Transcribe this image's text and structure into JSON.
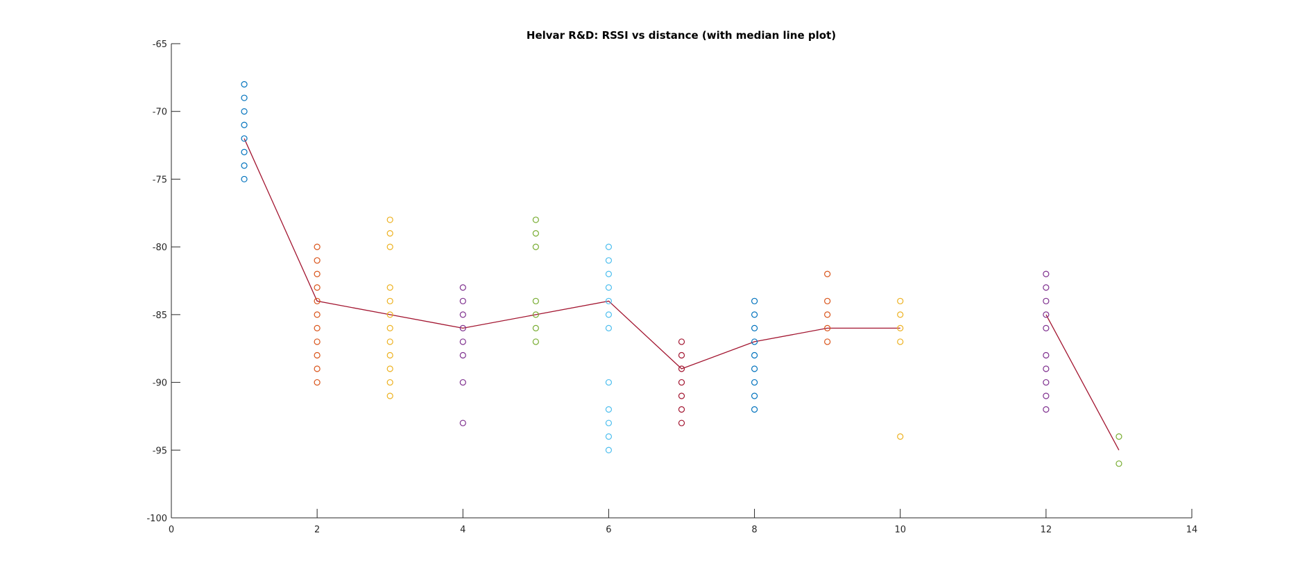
{
  "chart_data": {
    "type": "scatter",
    "title": "Helvar R&D: RSSI vs distance (with median line plot)",
    "xlabel": "",
    "ylabel": "",
    "xlim": [
      0,
      14
    ],
    "ylim": [
      -100,
      -65
    ],
    "xticks": [
      0,
      2,
      4,
      6,
      8,
      10,
      12,
      14
    ],
    "yticks": [
      -65,
      -70,
      -75,
      -80,
      -85,
      -90,
      -95,
      -100
    ],
    "grid": false,
    "point_colors": [
      "#0072BD",
      "#D95319",
      "#EDB120",
      "#7E2F8E",
      "#77AC30",
      "#4DBEEE",
      "#A2142F"
    ],
    "series": [
      {
        "x": 1,
        "values": [
          -68,
          -69,
          -70,
          -71,
          -72,
          -73,
          -74,
          -75
        ]
      },
      {
        "x": 2,
        "values": [
          -80,
          -81,
          -82,
          -83,
          -84,
          -85,
          -86,
          -87,
          -88,
          -89,
          -90
        ]
      },
      {
        "x": 3,
        "values": [
          -78,
          -79,
          -80,
          -83,
          -84,
          -85,
          -86,
          -87,
          -88,
          -89,
          -90,
          -91
        ]
      },
      {
        "x": 4,
        "values": [
          -83,
          -84,
          -85,
          -86,
          -87,
          -88,
          -90,
          -93
        ]
      },
      {
        "x": 5,
        "values": [
          -78,
          -79,
          -80,
          -84,
          -85,
          -86,
          -87
        ]
      },
      {
        "x": 6,
        "values": [
          -80,
          -81,
          -82,
          -83,
          -84,
          -85,
          -86,
          -90,
          -92,
          -93,
          -94,
          -95
        ]
      },
      {
        "x": 7,
        "values": [
          -87,
          -88,
          -89,
          -90,
          -91,
          -92,
          -93
        ]
      },
      {
        "x": 8,
        "values": [
          -84,
          -85,
          -86,
          -87,
          -88,
          -89,
          -90,
          -91,
          -92
        ]
      },
      {
        "x": 9,
        "values": [
          -82,
          -84,
          -85,
          -86,
          -87
        ]
      },
      {
        "x": 10,
        "values": [
          -84,
          -85,
          -86,
          -87,
          -94
        ]
      },
      {
        "x": 12,
        "values": [
          -82,
          -83,
          -84,
          -85,
          -86,
          -88,
          -89,
          -90,
          -91,
          -92
        ]
      },
      {
        "x": 13,
        "values": [
          -94,
          -96
        ]
      }
    ],
    "median_line": {
      "color": "#A2142F",
      "segments": [
        [
          [
            1,
            -72
          ],
          [
            2,
            -84
          ],
          [
            3,
            -85
          ],
          [
            4,
            -86
          ],
          [
            5,
            -85
          ],
          [
            6,
            -84
          ],
          [
            7,
            -89
          ],
          [
            8,
            -87
          ],
          [
            9,
            -86
          ],
          [
            10,
            -86
          ]
        ],
        [
          [
            12,
            -85
          ],
          [
            13,
            -95
          ]
        ]
      ]
    }
  }
}
